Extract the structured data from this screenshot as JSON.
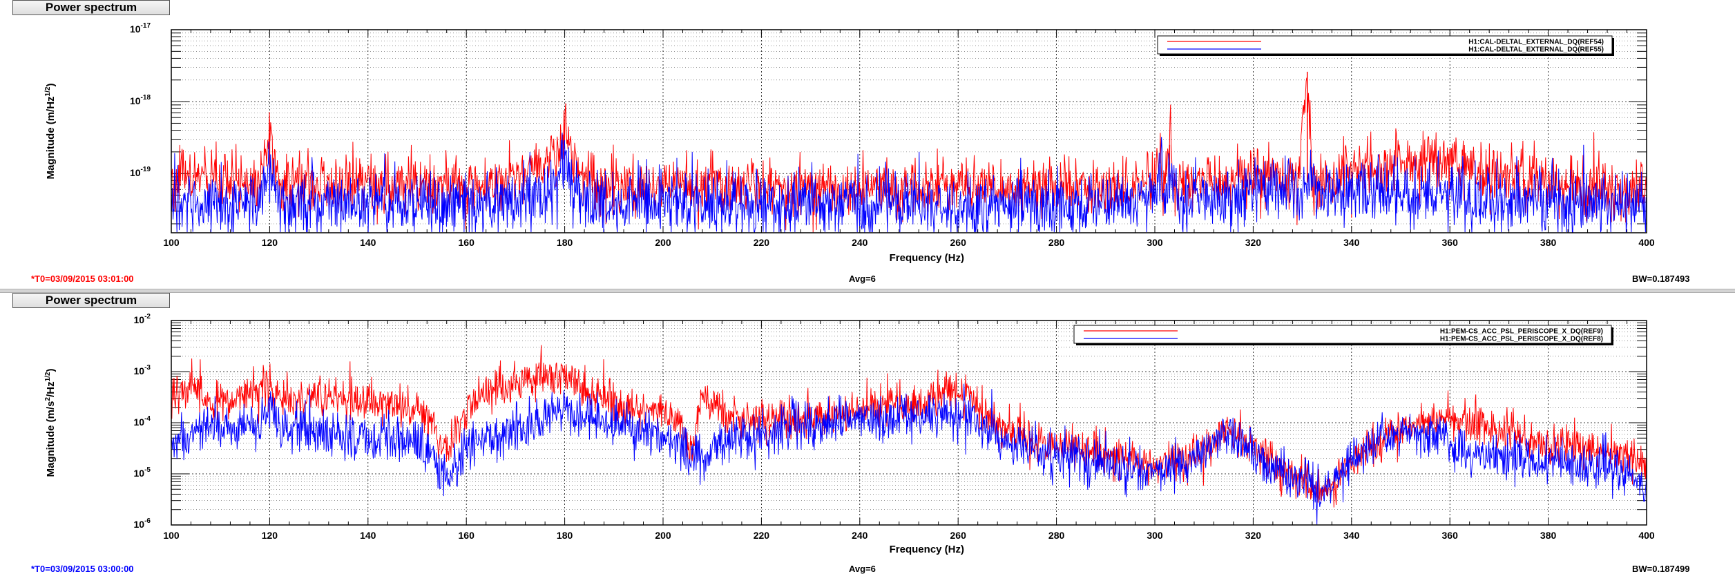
{
  "charts": [
    {
      "tab_label": "Power spectrum",
      "t0": "*T0=03/09/2015 03:01:00",
      "t0_color": "#ff0000",
      "avg": "Avg=6",
      "bw": "BW=0.187493",
      "chart_data": {
        "type": "line",
        "title": "",
        "xlabel": "Frequency (Hz)",
        "ylabel": "Magnitude (m/Hz",
        "ylabel_sup": "1/2",
        "ylabel_close": ")",
        "xlim": [
          100,
          400
        ],
        "ylim": [
          1.5e-20,
          1e-17
        ],
        "y_scale": "log",
        "x_ticks": [
          100,
          120,
          140,
          160,
          180,
          200,
          220,
          240,
          260,
          280,
          300,
          320,
          340,
          360,
          380,
          400
        ],
        "y_ticks": [
          {
            "value": 1e-19,
            "base": "10",
            "exp": "-19"
          },
          {
            "value": 1e-18,
            "base": "10",
            "exp": "-18"
          },
          {
            "value": 1e-17,
            "base": "10",
            "exp": "-17"
          }
        ],
        "grid": true,
        "legend_position": "top-right",
        "series": [
          {
            "name": "H1:CAL-DELTAL_EXTERNAL_DQ(REF54)",
            "color": "#ff0000",
            "x": [
              100,
              103,
              106,
              110,
              115,
              118,
              120,
              122,
              126,
              130,
              135,
              140,
              145,
              150,
              155,
              160,
              164,
              168,
              172,
              175,
              177,
              179,
              180,
              181,
              183,
              186,
              190,
              195,
              200,
              205,
              210,
              215,
              220,
              225,
              230,
              235,
              240,
              245,
              250,
              255,
              260,
              265,
              270,
              275,
              280,
              285,
              290,
              295,
              298,
              300,
              301,
              302,
              303,
              304,
              306,
              310,
              315,
              318,
              320,
              323,
              326,
              329,
              331,
              332,
              333,
              335,
              338,
              340,
              345,
              350,
              353,
              356,
              359,
              361,
              363,
              366,
              370,
              375,
              380,
              385,
              390,
              395,
              400
            ],
            "y": [
              8e-20,
              9e-20,
              9e-20,
              7e-20,
              7e-20,
              7.5e-20,
              3.5e-19,
              8e-20,
              8e-20,
              7.5e-20,
              7e-20,
              7e-20,
              7e-20,
              7e-20,
              7e-20,
              6.5e-20,
              7.5e-20,
              8e-20,
              1e-19,
              1.3e-19,
              1.8e-19,
              2.5e-19,
              4.5e-19,
              2e-19,
              1.2e-19,
              8.5e-20,
              7e-20,
              7e-20,
              7e-20,
              7e-20,
              7e-20,
              7e-20,
              7e-20,
              7e-20,
              6.5e-20,
              6.5e-20,
              6.5e-20,
              6.5e-20,
              6.5e-20,
              6.5e-20,
              7e-20,
              7e-20,
              6.5e-20,
              6.5e-20,
              6.5e-20,
              6.5e-20,
              6.5e-20,
              6.5e-20,
              7e-20,
              9e-20,
              1.4e-19,
              8e-20,
              2.5e-19,
              8e-20,
              7.5e-20,
              7.5e-20,
              8e-20,
              1e-19,
              1.1e-19,
              1e-19,
              8e-20,
              7.5e-20,
              2.6e-18,
              7.5e-20,
              8e-20,
              8e-20,
              9e-20,
              1e-19,
              1.2e-19,
              1.4e-19,
              1.4e-19,
              1.6e-19,
              1.7e-19,
              1.5e-19,
              1.3e-19,
              1.2e-19,
              1e-19,
              8.5e-20,
              7.5e-20,
              7e-20,
              6.5e-20,
              6e-20,
              6e-20
            ]
          },
          {
            "name": "H1:CAL-DELTAL_EXTERNAL_DQ(REF55)",
            "color": "#0000ff",
            "x": [
              100,
              103,
              106,
              110,
              115,
              118,
              120,
              122,
              126,
              130,
              135,
              140,
              145,
              150,
              155,
              160,
              165,
              170,
              175,
              178,
              180,
              182,
              185,
              190,
              195,
              200,
              210,
              220,
              230,
              240,
              250,
              260,
              270,
              280,
              290,
              298,
              300,
              301,
              302,
              303,
              305,
              310,
              315,
              320,
              325,
              330,
              332,
              335,
              340,
              345,
              350,
              355,
              360,
              365,
              370,
              375,
              380,
              385,
              390,
              395,
              400
            ],
            "y": [
              4.5e-20,
              4e-20,
              3.5e-20,
              3.5e-20,
              4e-20,
              4e-20,
              1.2e-19,
              4e-20,
              4e-20,
              4e-20,
              4.2e-20,
              4e-20,
              4e-20,
              4e-20,
              4e-20,
              3.8e-20,
              3.8e-20,
              4e-20,
              4.5e-20,
              8e-20,
              2e-19,
              6e-20,
              4.2e-20,
              4e-20,
              4e-20,
              4e-20,
              3.8e-20,
              3.8e-20,
              3.8e-20,
              3.8e-20,
              3.6e-20,
              3.6e-20,
              3.6e-20,
              3.6e-20,
              3.6e-20,
              4e-20,
              6e-20,
              1.2e-19,
              4.5e-20,
              1e-19,
              4.5e-20,
              5e-20,
              5.5e-20,
              6e-20,
              6e-20,
              5.5e-20,
              6e-20,
              5.5e-20,
              5.5e-20,
              5.5e-20,
              5.5e-20,
              5e-20,
              5e-20,
              4.5e-20,
              4.5e-20,
              4.2e-20,
              4e-20,
              3.8e-20,
              3.8e-20,
              3.8e-20,
              3.8e-20
            ]
          }
        ]
      }
    },
    {
      "tab_label": "Power spectrum",
      "t0": "*T0=03/09/2015 03:00:00",
      "t0_color": "#0000ff",
      "avg": "Avg=6",
      "bw": "BW=0.187499",
      "chart_data": {
        "type": "line",
        "title": "",
        "xlabel": "Frequency (Hz)",
        "ylabel": "Magnitude (m/s",
        "ylabel_sup": "2",
        "ylabel_mid": "/Hz",
        "ylabel_sup2": "1/2",
        "ylabel_close": ")",
        "xlim": [
          100,
          400
        ],
        "ylim": [
          1e-06,
          0.01
        ],
        "y_scale": "log",
        "x_ticks": [
          100,
          120,
          140,
          160,
          180,
          200,
          220,
          240,
          260,
          280,
          300,
          320,
          340,
          360,
          380,
          400
        ],
        "y_ticks": [
          {
            "value": 1e-06,
            "base": "10",
            "exp": "-6"
          },
          {
            "value": 1e-05,
            "base": "10",
            "exp": "-5"
          },
          {
            "value": 0.0001,
            "base": "10",
            "exp": "-4"
          },
          {
            "value": 0.001,
            "base": "10",
            "exp": "-3"
          },
          {
            "value": 0.01,
            "base": "10",
            "exp": "-2"
          }
        ],
        "grid": true,
        "legend_position": "top-right",
        "series": [
          {
            "name": "H1:PEM-CS_ACC_PSL_PERISCOPE_X_DQ(REF9)",
            "color": "#ff0000",
            "x": [
              100,
              102,
              104,
              106,
              108,
              110,
              115,
              118,
              120,
              122,
              125,
              130,
              135,
              140,
              145,
              150,
              153,
              156,
              158,
              160,
              163,
              166,
              170,
              175,
              180,
              182,
              185,
              190,
              195,
              200,
              203,
              206,
              208,
              210,
              213,
              217,
              220,
              225,
              230,
              235,
              240,
              245,
              250,
              255,
              258,
              260,
              263,
              266,
              270,
              275,
              280,
              285,
              290,
              295,
              300,
              305,
              310,
              313,
              315,
              318,
              320,
              325,
              330,
              333,
              335,
              338,
              340,
              345,
              350,
              355,
              360,
              365,
              370,
              375,
              380,
              385,
              390,
              395,
              398,
              400
            ],
            "y": [
              0.00035,
              0.0004,
              0.00055,
              0.0004,
              0.00025,
              0.00025,
              0.00035,
              0.0004,
              0.0005,
              0.0003,
              0.00028,
              0.0003,
              0.0003,
              0.00025,
              0.00022,
              0.0002,
              0.0001,
              3e-05,
              6e-05,
              0.00015,
              0.00035,
              0.0005,
              0.0006,
              0.0007,
              0.00085,
              0.0006,
              0.00035,
              0.00025,
              0.00018,
              0.00018,
              0.0001,
              3e-05,
              0.00035,
              0.00025,
              0.00015,
              0.00011,
              0.00011,
              0.00013,
              0.00015,
              0.00016,
              0.00018,
              0.0002,
              0.00022,
              0.0003,
              0.0004,
              0.0004,
              0.00025,
              0.00015,
              7e-05,
              5e-05,
              3.5e-05,
              3e-05,
              2.5e-05,
              2e-05,
              1.5e-05,
              1.8e-05,
              3e-05,
              5e-05,
              7e-05,
              5e-05,
              3e-05,
              1.5e-05,
              8e-06,
              5e-06,
              5e-06,
              1e-05,
              2e-05,
              4e-05,
              7e-05,
              0.0001,
              0.00013,
              0.0001,
              7e-05,
              5e-05,
              4e-05,
              3.5e-05,
              3e-05,
              2.5e-05,
              1.8e-05,
              1.5e-05
            ]
          },
          {
            "name": "H1:PEM-CS_ACC_PSL_PERISCOPE_X_DQ(REF8)",
            "color": "#0000ff",
            "x": [
              100,
              103,
              106,
              110,
              115,
              118,
              120,
              122,
              125,
              130,
              135,
              140,
              145,
              150,
              153,
              156,
              158,
              160,
              165,
              170,
              175,
              178,
              180,
              183,
              186,
              190,
              195,
              200,
              205,
              208,
              210,
              215,
              220,
              225,
              230,
              235,
              240,
              245,
              250,
              255,
              260,
              263,
              266,
              270,
              275,
              280,
              285,
              290,
              295,
              300,
              305,
              310,
              313,
              315,
              318,
              320,
              325,
              330,
              333,
              335,
              338,
              340,
              345,
              350,
              355,
              358,
              360,
              365,
              370,
              375,
              380,
              385,
              390,
              395,
              398,
              400
            ],
            "y": [
              4e-05,
              5e-05,
              9e-05,
              7e-05,
              7e-05,
              8e-05,
              0.00025,
              8e-05,
              8e-05,
              6e-05,
              5e-05,
              5e-05,
              5e-05,
              4e-05,
              2e-05,
              7e-06,
              1.5e-05,
              3.5e-05,
              6e-05,
              8e-05,
              0.0001,
              0.00015,
              0.0002,
              0.00015,
              0.00012,
              0.0001,
              7e-05,
              5e-05,
              3e-05,
              1.5e-05,
              3.5e-05,
              5e-05,
              6e-05,
              8e-05,
              0.0001,
              0.00012,
              0.00013,
              0.00013,
              0.00014,
              0.00015,
              0.00014,
              0.0001,
              6e-05,
              4e-05,
              3e-05,
              2.5e-05,
              2e-05,
              1.5e-05,
              1.2e-05,
              1.2e-05,
              1.5e-05,
              3e-05,
              5e-05,
              6e-05,
              4e-05,
              2.5e-05,
              1.2e-05,
              7e-06,
              5e-06,
              5e-06,
              1e-05,
              2e-05,
              4e-05,
              6e-05,
              6e-05,
              7e-05,
              3.5e-05,
              2.5e-05,
              2.2e-05,
              2e-05,
              1.8e-05,
              1.5e-05,
              1.3e-05,
              1.2e-05,
              7e-06,
              5e-06
            ]
          }
        ]
      }
    }
  ]
}
